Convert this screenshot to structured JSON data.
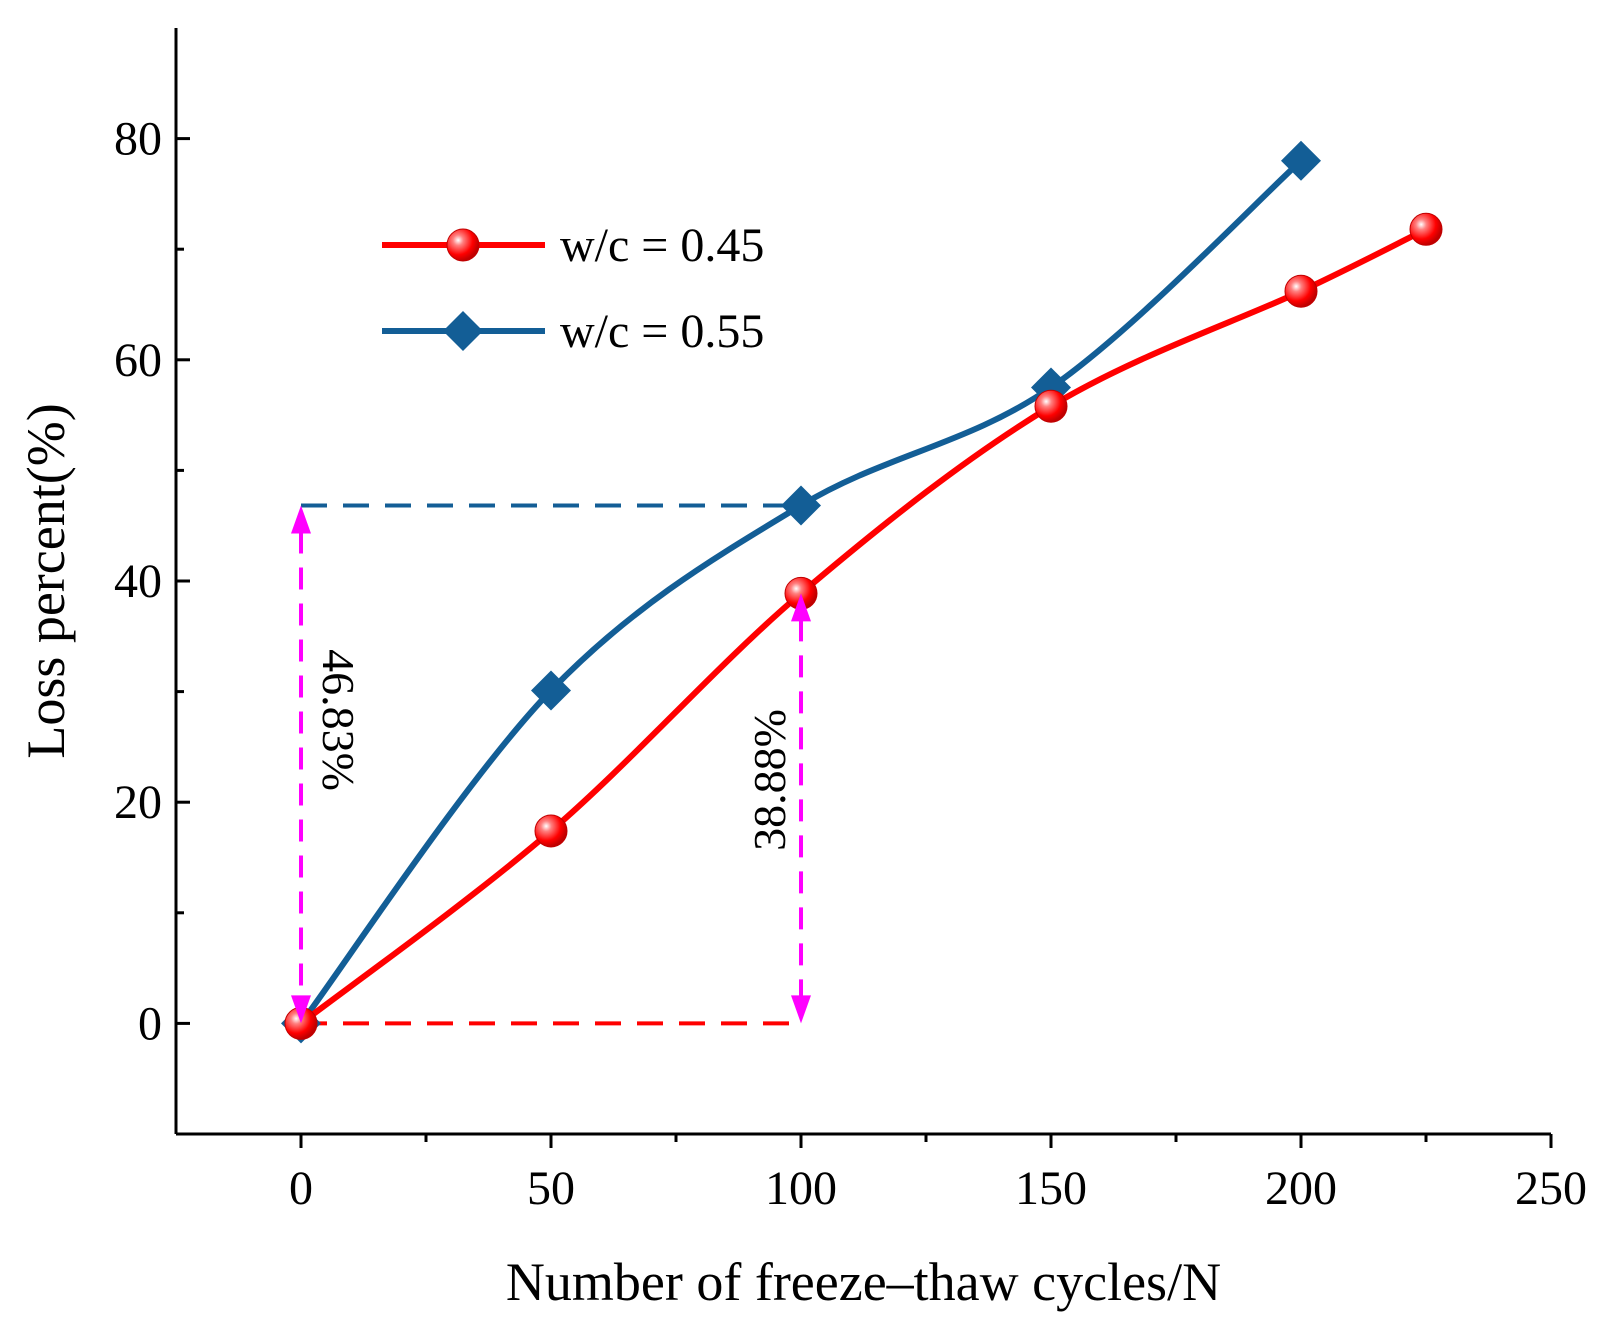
{
  "chart_data": {
    "type": "line",
    "xlabel": "Number of freeze–thaw cycles/N",
    "ylabel": "Loss percent(%)",
    "xlim": [
      -25,
      250
    ],
    "ylim": [
      -10,
      90
    ],
    "x_ticks": [
      0,
      50,
      100,
      150,
      200,
      250
    ],
    "x_tick_labels": [
      "0",
      "50",
      "100",
      "150",
      "200",
      "250"
    ],
    "y_ticks": [
      0,
      20,
      40,
      60,
      80
    ],
    "y_tick_labels": [
      "0",
      "20",
      "40",
      "60",
      "80"
    ],
    "y_minor_ticks": [
      10,
      30,
      50,
      70
    ],
    "grid": false,
    "legend_position": "upper-left",
    "series": [
      {
        "name": "w/c = 0.45",
        "color": "#ff0000",
        "marker": "circle",
        "x": [
          0,
          50,
          100,
          150,
          200,
          225
        ],
        "y": [
          0,
          17.4,
          38.88,
          55.8,
          66.2,
          71.8
        ]
      },
      {
        "name": "w/c = 0.55",
        "color": "#135e96",
        "marker": "diamond",
        "x": [
          0,
          50,
          100,
          150,
          200
        ],
        "y": [
          0,
          30.1,
          46.83,
          57.5,
          78.0
        ]
      }
    ],
    "annotations": [
      {
        "text": "46.83%",
        "x": 0,
        "y_from": 0,
        "y_to": 46.83,
        "series_color": "#135e96"
      },
      {
        "text": "38.88%",
        "x": 100,
        "y_from": 0,
        "y_to": 38.88,
        "series_color": "#ff0000"
      }
    ],
    "annotation_arrow_color": "#ff00ff"
  }
}
